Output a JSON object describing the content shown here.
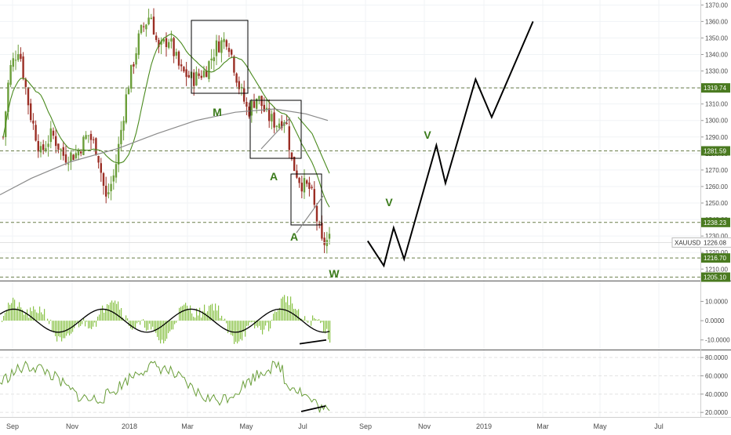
{
  "chart_data": {
    "type": "candlestick",
    "symbol": "XAUUSD",
    "last_price": "1226.08",
    "x_ticks": [
      "Sep",
      "Nov",
      "2018",
      "Mar",
      "May",
      "Jul",
      "Sep",
      "Nov",
      "2019",
      "Mar",
      "May",
      "Jul"
    ],
    "y_ticks": [
      "1370.00",
      "1360.00",
      "1350.00",
      "1340.00",
      "1330.00",
      "1320.00",
      "1310.00",
      "1300.00",
      "1290.00",
      "1280.00",
      "1270.00",
      "1260.00",
      "1250.00",
      "1240.00",
      "1230.00",
      "1220.00",
      "1210.00"
    ],
    "ylim": [
      1203,
      1373
    ],
    "horizontal_levels": [
      {
        "label": "1319.74",
        "value": 1319.74
      },
      {
        "label": "1281.59",
        "value": 1281.59
      },
      {
        "label": "1238.23",
        "value": 1238.23
      },
      {
        "label": "1216.70",
        "value": 1216.7
      },
      {
        "label": "1205.10",
        "value": 1205.1
      }
    ],
    "pattern_labels": [
      {
        "text": "M"
      },
      {
        "text": "A"
      },
      {
        "text": "A"
      },
      {
        "text": "W"
      },
      {
        "text": "V"
      },
      {
        "text": "V"
      }
    ],
    "projection_path": [
      [
        0.525,
        1227
      ],
      [
        0.548,
        1212
      ],
      [
        0.562,
        1235
      ],
      [
        0.577,
        1216
      ],
      [
        0.623,
        1285
      ],
      [
        0.636,
        1262
      ],
      [
        0.679,
        1325
      ],
      [
        0.702,
        1302
      ],
      [
        0.761,
        1360
      ]
    ],
    "oscillator": {
      "y_ticks": [
        "10.0000",
        "0.0000",
        "-10.0000"
      ],
      "ylim": [
        -15,
        20
      ]
    },
    "rsi": {
      "y_ticks": [
        "80.0000",
        "60.0000",
        "40.0000",
        "20.0000"
      ],
      "ylim": [
        15,
        87
      ]
    },
    "colors": {
      "bull": "#6b9e3a",
      "bear": "#9b2e25",
      "ma_fast": "#4a8a1e",
      "ma_slow": "#8a8a8a",
      "level": "#4a7a20",
      "projection": "#000000",
      "label_text": "#3a7a1a",
      "hist": "#8bc34a",
      "rsi": "#6a9e3a"
    }
  }
}
